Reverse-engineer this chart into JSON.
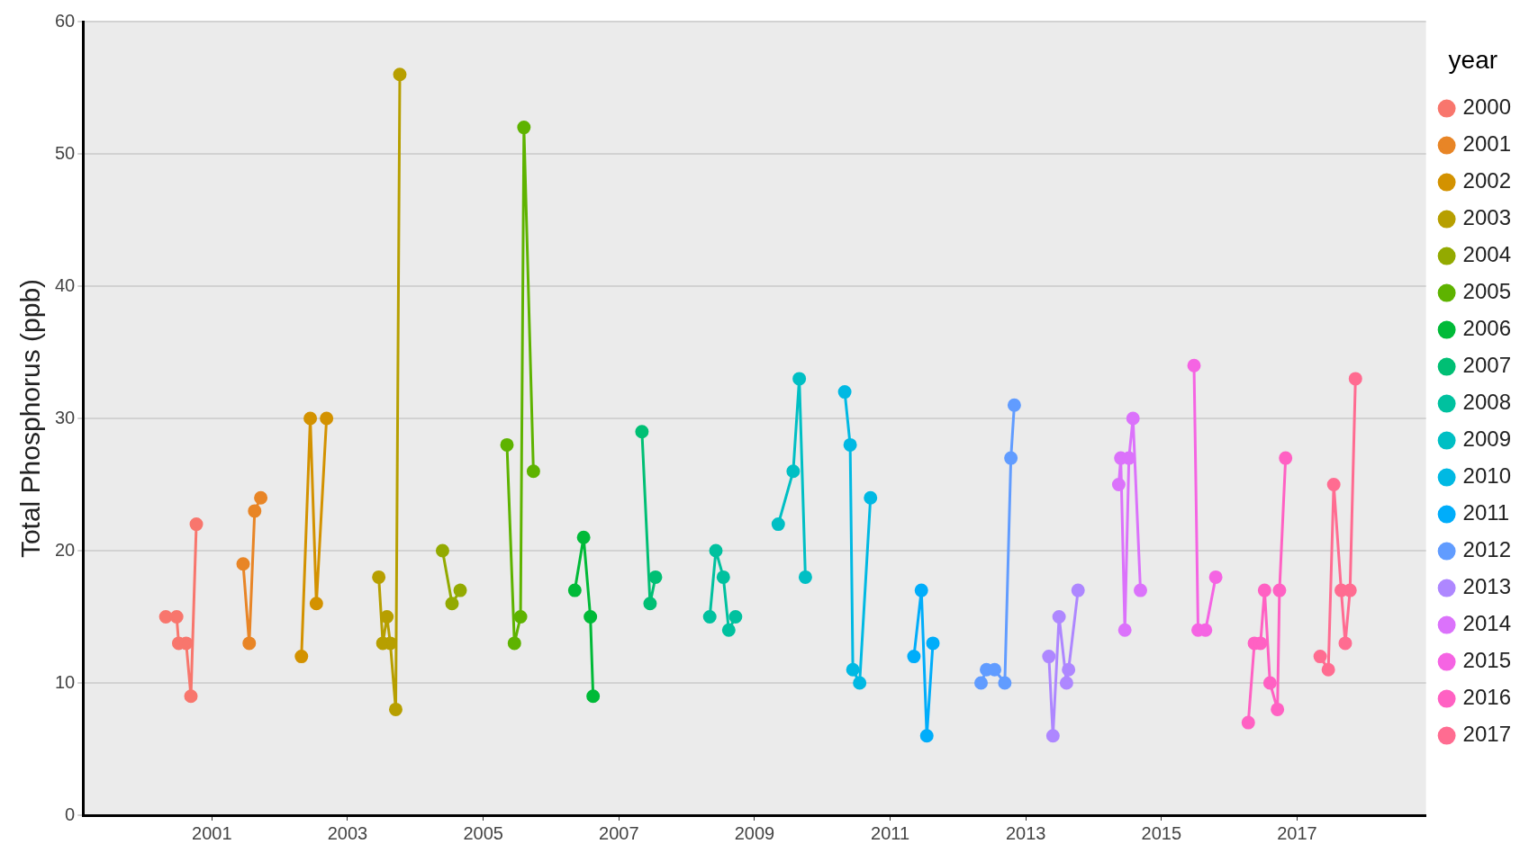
{
  "chart_data": {
    "type": "line",
    "ylabel": "Total Phosphorus (ppb)",
    "legend_title": "year",
    "legend": "right",
    "grid": "y",
    "marker": "circle",
    "line_style": "solid",
    "xlim": [
      1999.1,
      2018.9
    ],
    "xticks": [
      2001,
      2003,
      2005,
      2007,
      2009,
      2011,
      2013,
      2015,
      2017
    ],
    "ylim": [
      0,
      60
    ],
    "yticks": [
      0,
      10,
      20,
      30,
      40,
      50,
      60
    ],
    "series": [
      {
        "name": "2000",
        "color": "#F8766D",
        "x": [
          2000.32,
          2000.48,
          2000.51,
          2000.62,
          2000.69,
          2000.77
        ],
        "values": [
          15,
          15,
          13,
          13,
          9,
          22
        ]
      },
      {
        "name": "2001",
        "color": "#E88526",
        "x": [
          2001.46,
          2001.55,
          2001.63,
          2001.72
        ],
        "values": [
          19,
          13,
          23,
          24
        ]
      },
      {
        "name": "2002",
        "color": "#D39200",
        "x": [
          2002.32,
          2002.45,
          2002.54,
          2002.69
        ],
        "values": [
          12,
          30,
          16,
          30
        ]
      },
      {
        "name": "2003",
        "color": "#B79F00",
        "x": [
          2003.46,
          2003.52,
          2003.58,
          2003.63,
          2003.71,
          2003.77
        ],
        "values": [
          18,
          13,
          15,
          13,
          8,
          56
        ]
      },
      {
        "name": "2004",
        "color": "#93AA00",
        "x": [
          2004.4,
          2004.54,
          2004.66
        ],
        "values": [
          20,
          16,
          17
        ]
      },
      {
        "name": "2005",
        "color": "#5EB300",
        "x": [
          2005.35,
          2005.46,
          2005.55,
          2005.6,
          2005.74
        ],
        "values": [
          28,
          13,
          15,
          52,
          26
        ]
      },
      {
        "name": "2006",
        "color": "#00BA38",
        "x": [
          2006.35,
          2006.48,
          2006.58,
          2006.62
        ],
        "values": [
          17,
          21,
          15,
          9
        ]
      },
      {
        "name": "2007",
        "color": "#00BF74",
        "x": [
          2007.34,
          2007.46,
          2007.54
        ],
        "values": [
          29,
          16,
          18
        ]
      },
      {
        "name": "2008",
        "color": "#00C19F",
        "x": [
          2008.34,
          2008.43,
          2008.54,
          2008.62,
          2008.72
        ],
        "values": [
          15,
          20,
          18,
          14,
          15
        ]
      },
      {
        "name": "2009",
        "color": "#00BFC4",
        "x": [
          2009.35,
          2009.57,
          2009.66,
          2009.75
        ],
        "values": [
          22,
          26,
          33,
          18
        ]
      },
      {
        "name": "2010",
        "color": "#00B9E3",
        "x": [
          2010.33,
          2010.41,
          2010.45,
          2010.55,
          2010.71
        ],
        "values": [
          32,
          28,
          11,
          10,
          24
        ]
      },
      {
        "name": "2011",
        "color": "#00ADFA",
        "x": [
          2011.35,
          2011.46,
          2011.54,
          2011.63
        ],
        "values": [
          12,
          17,
          6,
          13
        ]
      },
      {
        "name": "2012",
        "color": "#619CFF",
        "x": [
          2012.34,
          2012.42,
          2012.54,
          2012.69,
          2012.78,
          2012.83
        ],
        "values": [
          10,
          11,
          11,
          10,
          27,
          31
        ]
      },
      {
        "name": "2013",
        "color": "#AE87FF",
        "x": [
          2013.34,
          2013.4,
          2013.49,
          2013.6,
          2013.63,
          2013.77
        ],
        "values": [
          12,
          6,
          15,
          10,
          11,
          17
        ]
      },
      {
        "name": "2014",
        "color": "#DB72FB",
        "x": [
          2014.37,
          2014.4,
          2014.46,
          2014.52,
          2014.58,
          2014.69
        ],
        "values": [
          25,
          27,
          14,
          27,
          30,
          17
        ]
      },
      {
        "name": "2015",
        "color": "#F564E3",
        "x": [
          2015.48,
          2015.54,
          2015.65,
          2015.8
        ],
        "values": [
          34,
          14,
          14,
          18
        ]
      },
      {
        "name": "2016",
        "color": "#FF61C3",
        "x": [
          2016.28,
          2016.37,
          2016.46,
          2016.52,
          2016.6,
          2016.71,
          2016.74,
          2016.83
        ],
        "values": [
          7,
          13,
          13,
          17,
          10,
          8,
          17,
          27
        ]
      },
      {
        "name": "2017",
        "color": "#FF6C91",
        "x": [
          2017.34,
          2017.46,
          2017.54,
          2017.65,
          2017.71,
          2017.78,
          2017.86
        ],
        "values": [
          12,
          11,
          25,
          17,
          13,
          17,
          33
        ]
      }
    ]
  }
}
